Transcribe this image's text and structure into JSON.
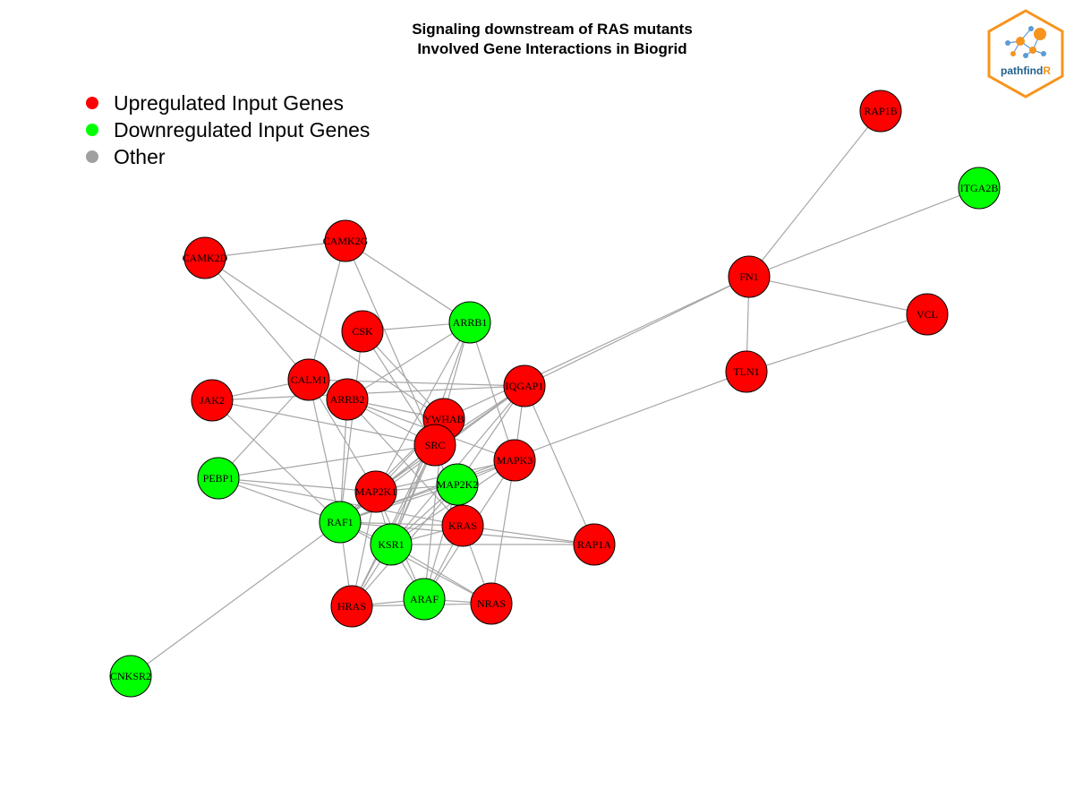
{
  "title": {
    "line1": "Signaling downstream of RAS mutants",
    "line2": "Involved Gene Interactions in Biogrid"
  },
  "legend": [
    {
      "label": "Upregulated Input Genes",
      "color": "#ff0000"
    },
    {
      "label": "Downregulated Input Genes",
      "color": "#00ff00"
    },
    {
      "label": "Other",
      "color": "#a0a0a0"
    }
  ],
  "logo": {
    "text_main": "pathfind",
    "text_accent": "R",
    "border_color": "#f7941d",
    "text_color": "#1f5f8b"
  },
  "colors": {
    "up": "#ff0000",
    "down": "#00ff00",
    "edge": "#a6a6a6"
  },
  "nodes": [
    {
      "id": "RAP1B",
      "status": "up"
    },
    {
      "id": "ITGA2B",
      "status": "down"
    },
    {
      "id": "FN1",
      "status": "up"
    },
    {
      "id": "VCL",
      "status": "up"
    },
    {
      "id": "TLN1",
      "status": "up"
    },
    {
      "id": "CAMK2G",
      "status": "up"
    },
    {
      "id": "CAMK2D",
      "status": "up"
    },
    {
      "id": "CSK",
      "status": "up"
    },
    {
      "id": "ARRB1",
      "status": "down"
    },
    {
      "id": "CALM1",
      "status": "up"
    },
    {
      "id": "JAK2",
      "status": "up"
    },
    {
      "id": "ARRB2",
      "status": "up"
    },
    {
      "id": "IQGAP1",
      "status": "up"
    },
    {
      "id": "YWHAB",
      "status": "up"
    },
    {
      "id": "SRC",
      "status": "up"
    },
    {
      "id": "MAPK3",
      "status": "up"
    },
    {
      "id": "PEBP1",
      "status": "down"
    },
    {
      "id": "MAP2K1",
      "status": "up"
    },
    {
      "id": "MAP2K2",
      "status": "down"
    },
    {
      "id": "RAF1",
      "status": "down"
    },
    {
      "id": "KRAS",
      "status": "up"
    },
    {
      "id": "KSR1",
      "status": "down"
    },
    {
      "id": "RAP1A",
      "status": "up"
    },
    {
      "id": "HRAS",
      "status": "up"
    },
    {
      "id": "ARAF",
      "status": "down"
    },
    {
      "id": "NRAS",
      "status": "up"
    },
    {
      "id": "CNKSR2",
      "status": "down"
    }
  ],
  "edges": [
    [
      "RAP1B",
      "FN1"
    ],
    [
      "ITGA2B",
      "FN1"
    ],
    [
      "FN1",
      "VCL"
    ],
    [
      "FN1",
      "TLN1"
    ],
    [
      "VCL",
      "TLN1"
    ],
    [
      "FN1",
      "IQGAP1"
    ],
    [
      "FN1",
      "YWHAB"
    ],
    [
      "TLN1",
      "RAF1"
    ],
    [
      "CAMK2D",
      "CAMK2G"
    ],
    [
      "CAMK2D",
      "CALM1"
    ],
    [
      "CAMK2D",
      "YWHAB"
    ],
    [
      "CAMK2G",
      "CALM1"
    ],
    [
      "CAMK2G",
      "ARRB1"
    ],
    [
      "CAMK2G",
      "SRC"
    ],
    [
      "CSK",
      "ARRB1"
    ],
    [
      "CSK",
      "SRC"
    ],
    [
      "CSK",
      "YWHAB"
    ],
    [
      "CSK",
      "RAF1"
    ],
    [
      "ARRB1",
      "ARRB2"
    ],
    [
      "ARRB1",
      "SRC"
    ],
    [
      "ARRB1",
      "MAPK3"
    ],
    [
      "ARRB1",
      "MAP2K1"
    ],
    [
      "ARRB1",
      "KSR1"
    ],
    [
      "CALM1",
      "JAK2"
    ],
    [
      "CALM1",
      "IQGAP1"
    ],
    [
      "CALM1",
      "PEBP1"
    ],
    [
      "CALM1",
      "RAF1"
    ],
    [
      "CALM1",
      "MAP2K1"
    ],
    [
      "JAK2",
      "SRC"
    ],
    [
      "JAK2",
      "RAF1"
    ],
    [
      "JAK2",
      "IQGAP1"
    ],
    [
      "ARRB2",
      "SRC"
    ],
    [
      "ARRB2",
      "YWHAB"
    ],
    [
      "ARRB2",
      "RAF1"
    ],
    [
      "ARRB2",
      "KRAS"
    ],
    [
      "ARRB2",
      "MAPK3"
    ],
    [
      "IQGAP1",
      "SRC"
    ],
    [
      "IQGAP1",
      "MAPK3"
    ],
    [
      "IQGAP1",
      "MAP2K1"
    ],
    [
      "IQGAP1",
      "MAP2K2"
    ],
    [
      "IQGAP1",
      "RAP1A"
    ],
    [
      "IQGAP1",
      "KSR1"
    ],
    [
      "IQGAP1",
      "RAF1"
    ],
    [
      "YWHAB",
      "RAF1"
    ],
    [
      "YWHAB",
      "MAP2K1"
    ],
    [
      "YWHAB",
      "KSR1"
    ],
    [
      "YWHAB",
      "ARAF"
    ],
    [
      "YWHAB",
      "HRAS"
    ],
    [
      "SRC",
      "RAF1"
    ],
    [
      "SRC",
      "MAP2K1"
    ],
    [
      "SRC",
      "KSR1"
    ],
    [
      "SRC",
      "PEBP1"
    ],
    [
      "SRC",
      "HRAS"
    ],
    [
      "SRC",
      "KRAS"
    ],
    [
      "MAPK3",
      "MAP2K1"
    ],
    [
      "MAPK3",
      "MAP2K2"
    ],
    [
      "MAPK3",
      "KSR1"
    ],
    [
      "MAPK3",
      "RAF1"
    ],
    [
      "MAPK3",
      "NRAS"
    ],
    [
      "MAPK3",
      "ARAF"
    ],
    [
      "PEBP1",
      "RAF1"
    ],
    [
      "PEBP1",
      "MAP2K1"
    ],
    [
      "PEBP1",
      "KRAS"
    ],
    [
      "MAP2K1",
      "RAF1"
    ],
    [
      "MAP2K1",
      "KSR1"
    ],
    [
      "MAP2K1",
      "ARAF"
    ],
    [
      "MAP2K1",
      "HRAS"
    ],
    [
      "MAP2K1",
      "MAP2K2"
    ],
    [
      "MAP2K2",
      "RAF1"
    ],
    [
      "MAP2K2",
      "KSR1"
    ],
    [
      "MAP2K2",
      "ARAF"
    ],
    [
      "MAP2K2",
      "HRAS"
    ],
    [
      "RAF1",
      "KRAS"
    ],
    [
      "RAF1",
      "HRAS"
    ],
    [
      "RAF1",
      "NRAS"
    ],
    [
      "RAF1",
      "RAP1A"
    ],
    [
      "RAF1",
      "CNKSR2"
    ],
    [
      "RAF1",
      "KSR1"
    ],
    [
      "KRAS",
      "RAP1A"
    ],
    [
      "KRAS",
      "KSR1"
    ],
    [
      "KRAS",
      "ARAF"
    ],
    [
      "KRAS",
      "NRAS"
    ],
    [
      "KSR1",
      "HRAS"
    ],
    [
      "KSR1",
      "ARAF"
    ],
    [
      "KSR1",
      "NRAS"
    ],
    [
      "KSR1",
      "RAP1A"
    ],
    [
      "HRAS",
      "ARAF"
    ],
    [
      "HRAS",
      "NRAS"
    ],
    [
      "ARAF",
      "NRAS"
    ]
  ]
}
